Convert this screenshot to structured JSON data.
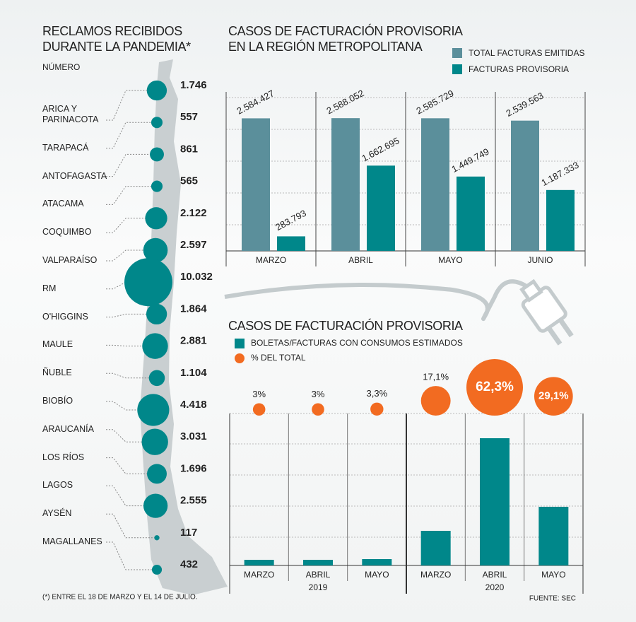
{
  "chart_data": [
    {
      "type": "bubble",
      "title": [
        "RECLAMOS RECIBIDOS",
        "DURANTE LA PANDEMIA*"
      ],
      "subtitle": "NÚMERO",
      "categories": [
        "ARICA Y PARINACOTA",
        "TARAPACÁ",
        "ANTOFAGASTA",
        "ATACAMA",
        "COQUIMBO",
        "VALPARAÍSO",
        "RM",
        "O'HIGGINS",
        "MAULE",
        "ÑUBLE",
        "BIOBÍO",
        "ARAUCANÍA",
        "LOS RÍOS",
        "LAGOS",
        "AYSÉN",
        "MAGALLANES"
      ],
      "values": [
        1746,
        557,
        861,
        565,
        2122,
        2597,
        10032,
        1864,
        2881,
        1104,
        4418,
        3031,
        1696,
        2555,
        117,
        432
      ],
      "value_labels": [
        "1.746",
        "557",
        "861",
        "565",
        "2.122",
        "2.597",
        "10.032",
        "1.864",
        "2.881",
        "1.104",
        "4.418",
        "3.031",
        "1.696",
        "2.555",
        "117",
        "432"
      ],
      "color": "#00878a"
    },
    {
      "type": "bar",
      "title": [
        "CASOS DE FACTURACIÓN PROVISORIA",
        "EN LA REGIÓN METROPOLITANA"
      ],
      "categories": [
        "MARZO",
        "ABRIL",
        "MAYO",
        "JUNIO"
      ],
      "series": [
        {
          "name": "TOTAL FACTURAS EMITIDAS",
          "color": "#5b8f9b",
          "values": [
            2584427,
            2588052,
            2585729,
            2539563
          ],
          "value_labels": [
            "2.584.427",
            "2.588.052",
            "2.585.729",
            "2.539.563"
          ]
        },
        {
          "name": "FACTURAS PROVISORIA",
          "color": "#00878a",
          "values": [
            283793,
            1662695,
            1449749,
            1187333
          ],
          "value_labels": [
            "283.793",
            "1.662.695",
            "1.449.749",
            "1.187.333"
          ]
        }
      ],
      "ylim": [
        0,
        3100000
      ]
    },
    {
      "type": "combo",
      "title": "CASOS DE FACTURACIÓN PROVISORIA",
      "categories": [
        "MARZO",
        "ABRIL",
        "MAYO",
        "MARZO",
        "ABRIL",
        "MAYO"
      ],
      "groups": [
        "2019",
        "2020"
      ],
      "series": [
        {
          "name": "BOLETAS/FACTURAS CON CONSUMOS ESTIMADOS",
          "color": "#00878a",
          "values": [
            8,
            8,
            9,
            49,
            180,
            83
          ]
        },
        {
          "name": "% DEL TOTAL",
          "color": "#f26b21",
          "values": [
            3,
            3,
            3.3,
            17.1,
            62.3,
            29.1
          ],
          "value_labels": [
            "3%",
            "3%",
            "3,3%",
            "17,1%",
            "62,3%",
            "29,1%"
          ]
        }
      ],
      "ylim": [
        0,
        215
      ]
    }
  ],
  "footnote": "(*) ENTRE EL 18 DE MARZO Y EL 14 DE JULIO.",
  "source": "FUENTE: SEC"
}
